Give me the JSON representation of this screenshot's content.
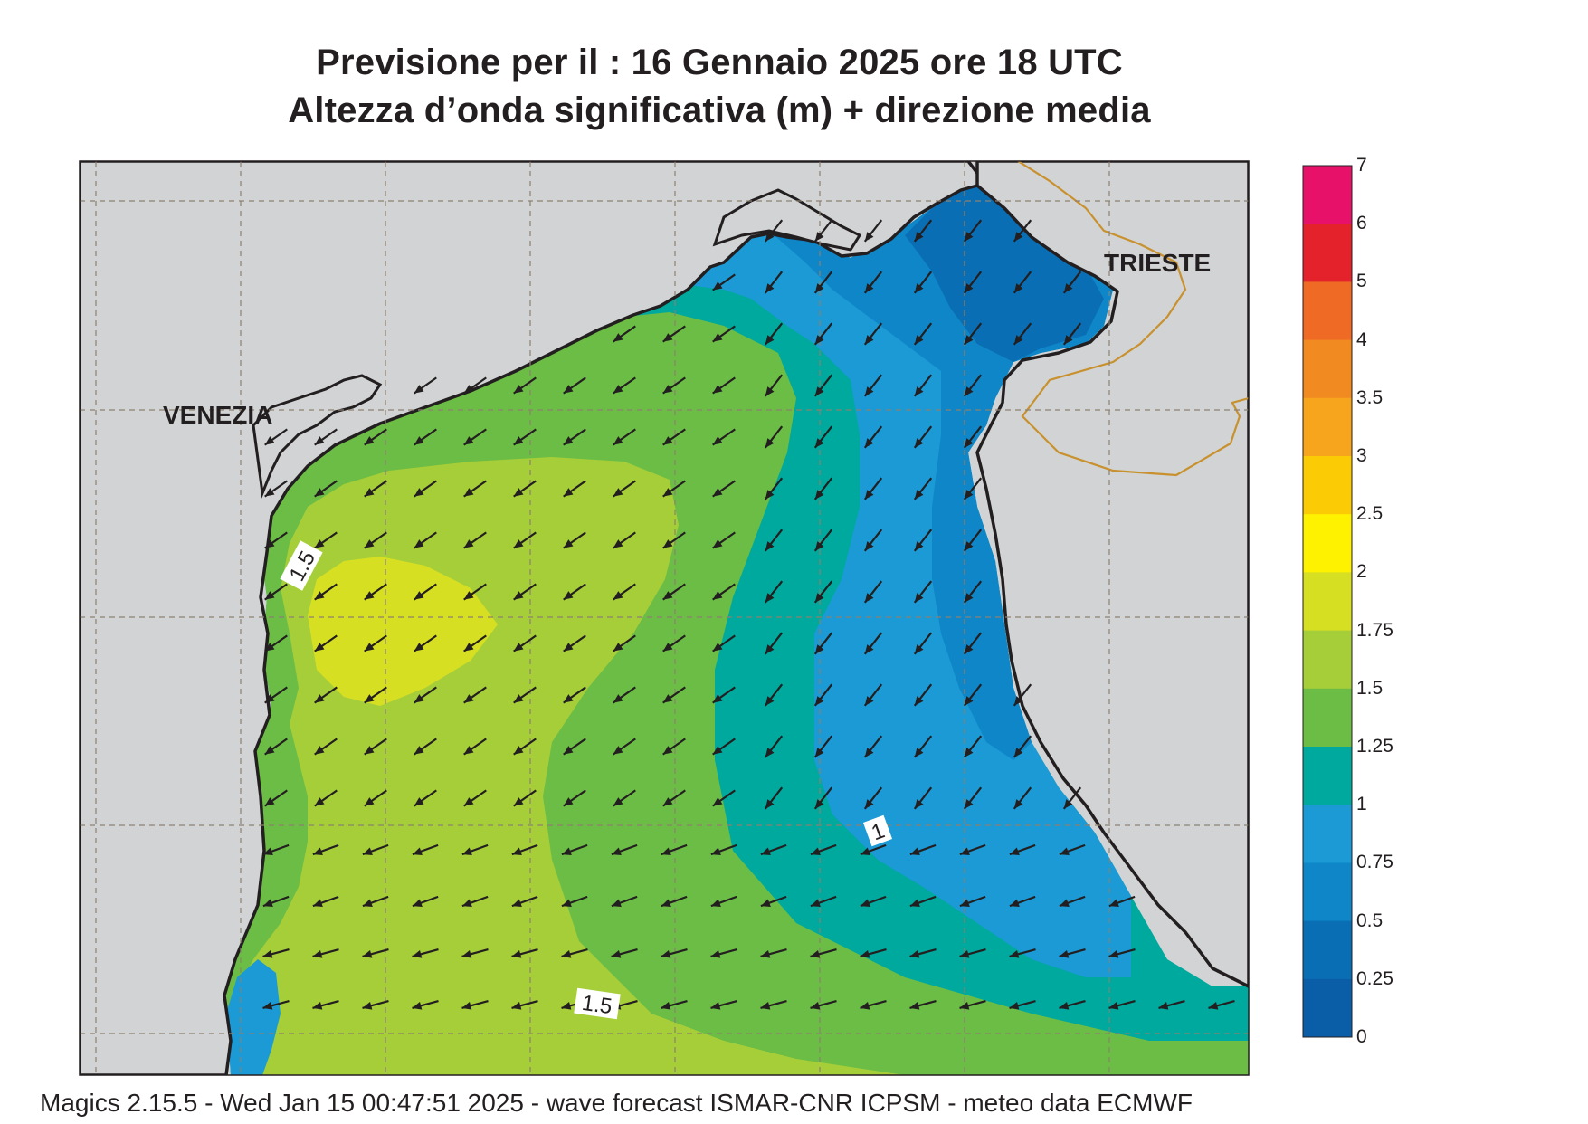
{
  "title": {
    "line1": "Previsione per il  :  16  Gennaio  2025   ore 18 UTC",
    "line2": "Altezza d’onda significativa (m) + direzione media"
  },
  "map": {
    "places": [
      "VENEZIA",
      "TRIESTE"
    ],
    "contour_labels": [
      "1.5",
      "1",
      "1.5"
    ],
    "arrow_direction": "toward south-west (WSW in the south)"
  },
  "colorbar": {
    "labels": [
      "7",
      "6",
      "5",
      "4",
      "3.5",
      "3",
      "2.5",
      "2",
      "1.75",
      "1.5",
      "1.25",
      "1",
      "0.75",
      "0.5",
      "0.25",
      "0"
    ],
    "colors": [
      "#e8116a",
      "#e4222c",
      "#ef6b25",
      "#f28a22",
      "#f6a51d",
      "#fbcc05",
      "#fef200",
      "#d7df23",
      "#a6ce39",
      "#6cbd45",
      "#00a99d",
      "#1b9ad6",
      "#0f86c8",
      "#0a6eb4",
      "#0a5ea8"
    ]
  },
  "palette": {
    "land": "#d1d3d4",
    "coast": "#231f20",
    "border": "#c8912e",
    "grid": "#8c8170"
  },
  "footer": "Magics 2.15.5 - Wed Jan 15 00:47:51 2025 - wave forecast  ISMAR-CNR  ICPSM - meteo data   ECMWF"
}
